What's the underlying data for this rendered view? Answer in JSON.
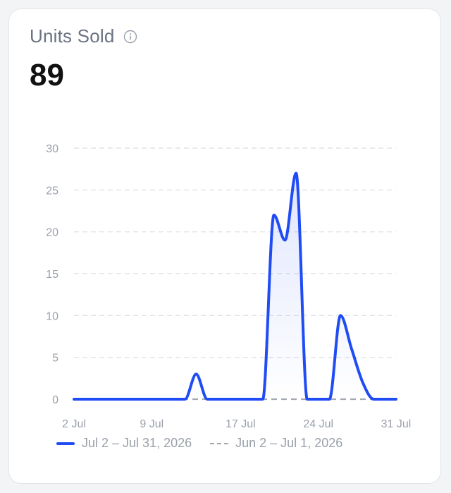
{
  "card": {
    "title": "Units Sold",
    "value": "89",
    "info_icon": "info-icon"
  },
  "colors": {
    "current": "#1f4cf5",
    "previous": "#a3a8b1",
    "grid": "#e2e4e8",
    "text_muted": "#9aa0aa"
  },
  "chart_data": {
    "type": "area",
    "title": "Units Sold",
    "xlabel": "",
    "ylabel": "",
    "ylim": [
      0,
      30
    ],
    "yticks": [
      0,
      5,
      10,
      15,
      20,
      25,
      30
    ],
    "grid": true,
    "legend_position": "bottom",
    "x_tick_labels": [
      "2 Jul",
      "9 Jul",
      "17 Jul",
      "24 Jul",
      "31 Jul"
    ],
    "x_tick_index": [
      0,
      7,
      15,
      22,
      29
    ],
    "series": [
      {
        "name": "Jul 2 – Jul 31, 2026",
        "style": "solid",
        "x": [
          "2 Jul",
          "3 Jul",
          "4 Jul",
          "5 Jul",
          "6 Jul",
          "7 Jul",
          "8 Jul",
          "9 Jul",
          "10 Jul",
          "11 Jul",
          "12 Jul",
          "13 Jul",
          "14 Jul",
          "15 Jul",
          "16 Jul",
          "17 Jul",
          "18 Jul",
          "19 Jul",
          "20 Jul",
          "21 Jul",
          "22 Jul",
          "23 Jul",
          "24 Jul",
          "25 Jul",
          "26 Jul",
          "27 Jul",
          "28 Jul",
          "29 Jul",
          "30 Jul",
          "31 Jul"
        ],
        "values": [
          0,
          0,
          0,
          0,
          0,
          0,
          0,
          0,
          0,
          0,
          0,
          3,
          0,
          0,
          0,
          0,
          0,
          0,
          22,
          19,
          27,
          0,
          0,
          0,
          10,
          6,
          2,
          0,
          0,
          0
        ]
      },
      {
        "name": "Jun 2 – Jul 1, 2026",
        "style": "dashed",
        "values": [
          0,
          0,
          0,
          0,
          0,
          0,
          0,
          0,
          0,
          0,
          0,
          0,
          0,
          0,
          0,
          0,
          0,
          0,
          0,
          0,
          0,
          0,
          0,
          0,
          0,
          0,
          0,
          0,
          0,
          0
        ]
      }
    ]
  }
}
